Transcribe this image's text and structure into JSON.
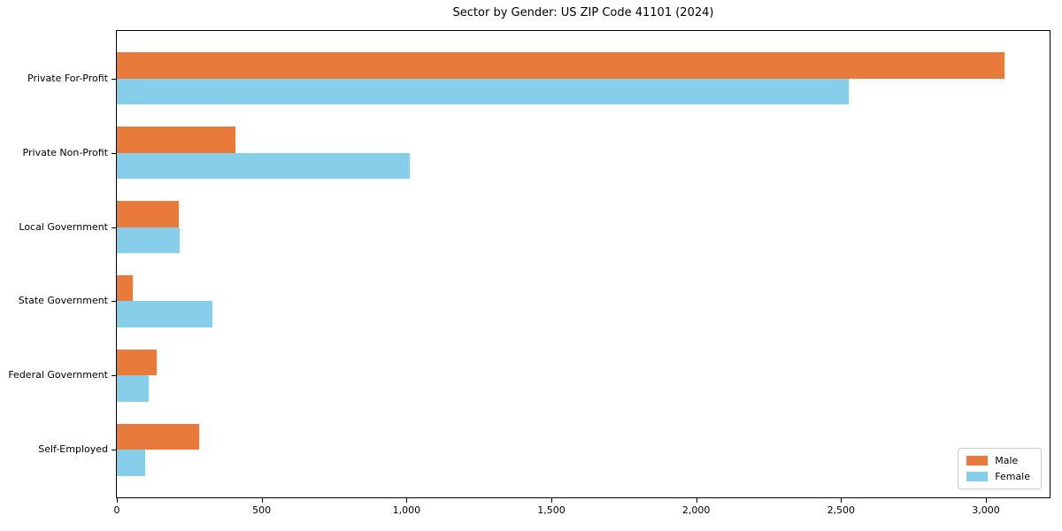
{
  "chart_data": {
    "type": "bar",
    "orientation": "horizontal",
    "title": "Sector by Gender: US ZIP Code 41101 (2024)",
    "categories": [
      "Private For-Profit",
      "Private Non-Profit",
      "Local Government",
      "State Government",
      "Federal Government",
      "Self-Employed"
    ],
    "series": [
      {
        "name": "Male",
        "color": "#e87b3c",
        "values": [
          3063,
          409,
          214,
          56,
          137,
          284
        ]
      },
      {
        "name": "Female",
        "color": "#87ceeb",
        "values": [
          2528,
          1011,
          216,
          330,
          110,
          98
        ]
      }
    ],
    "xlim": [
      0,
      3220
    ],
    "x_ticks": [
      0,
      500,
      1000,
      1500,
      2000,
      2500,
      3000
    ],
    "x_tick_labels": [
      "0",
      "500",
      "1,000",
      "1,500",
      "2,000",
      "2,500",
      "3,000"
    ],
    "xlabel": "",
    "ylabel": "",
    "grid": false,
    "legend_position": "lower right",
    "axis_color": "#000000",
    "background_color": "#ffffff"
  }
}
